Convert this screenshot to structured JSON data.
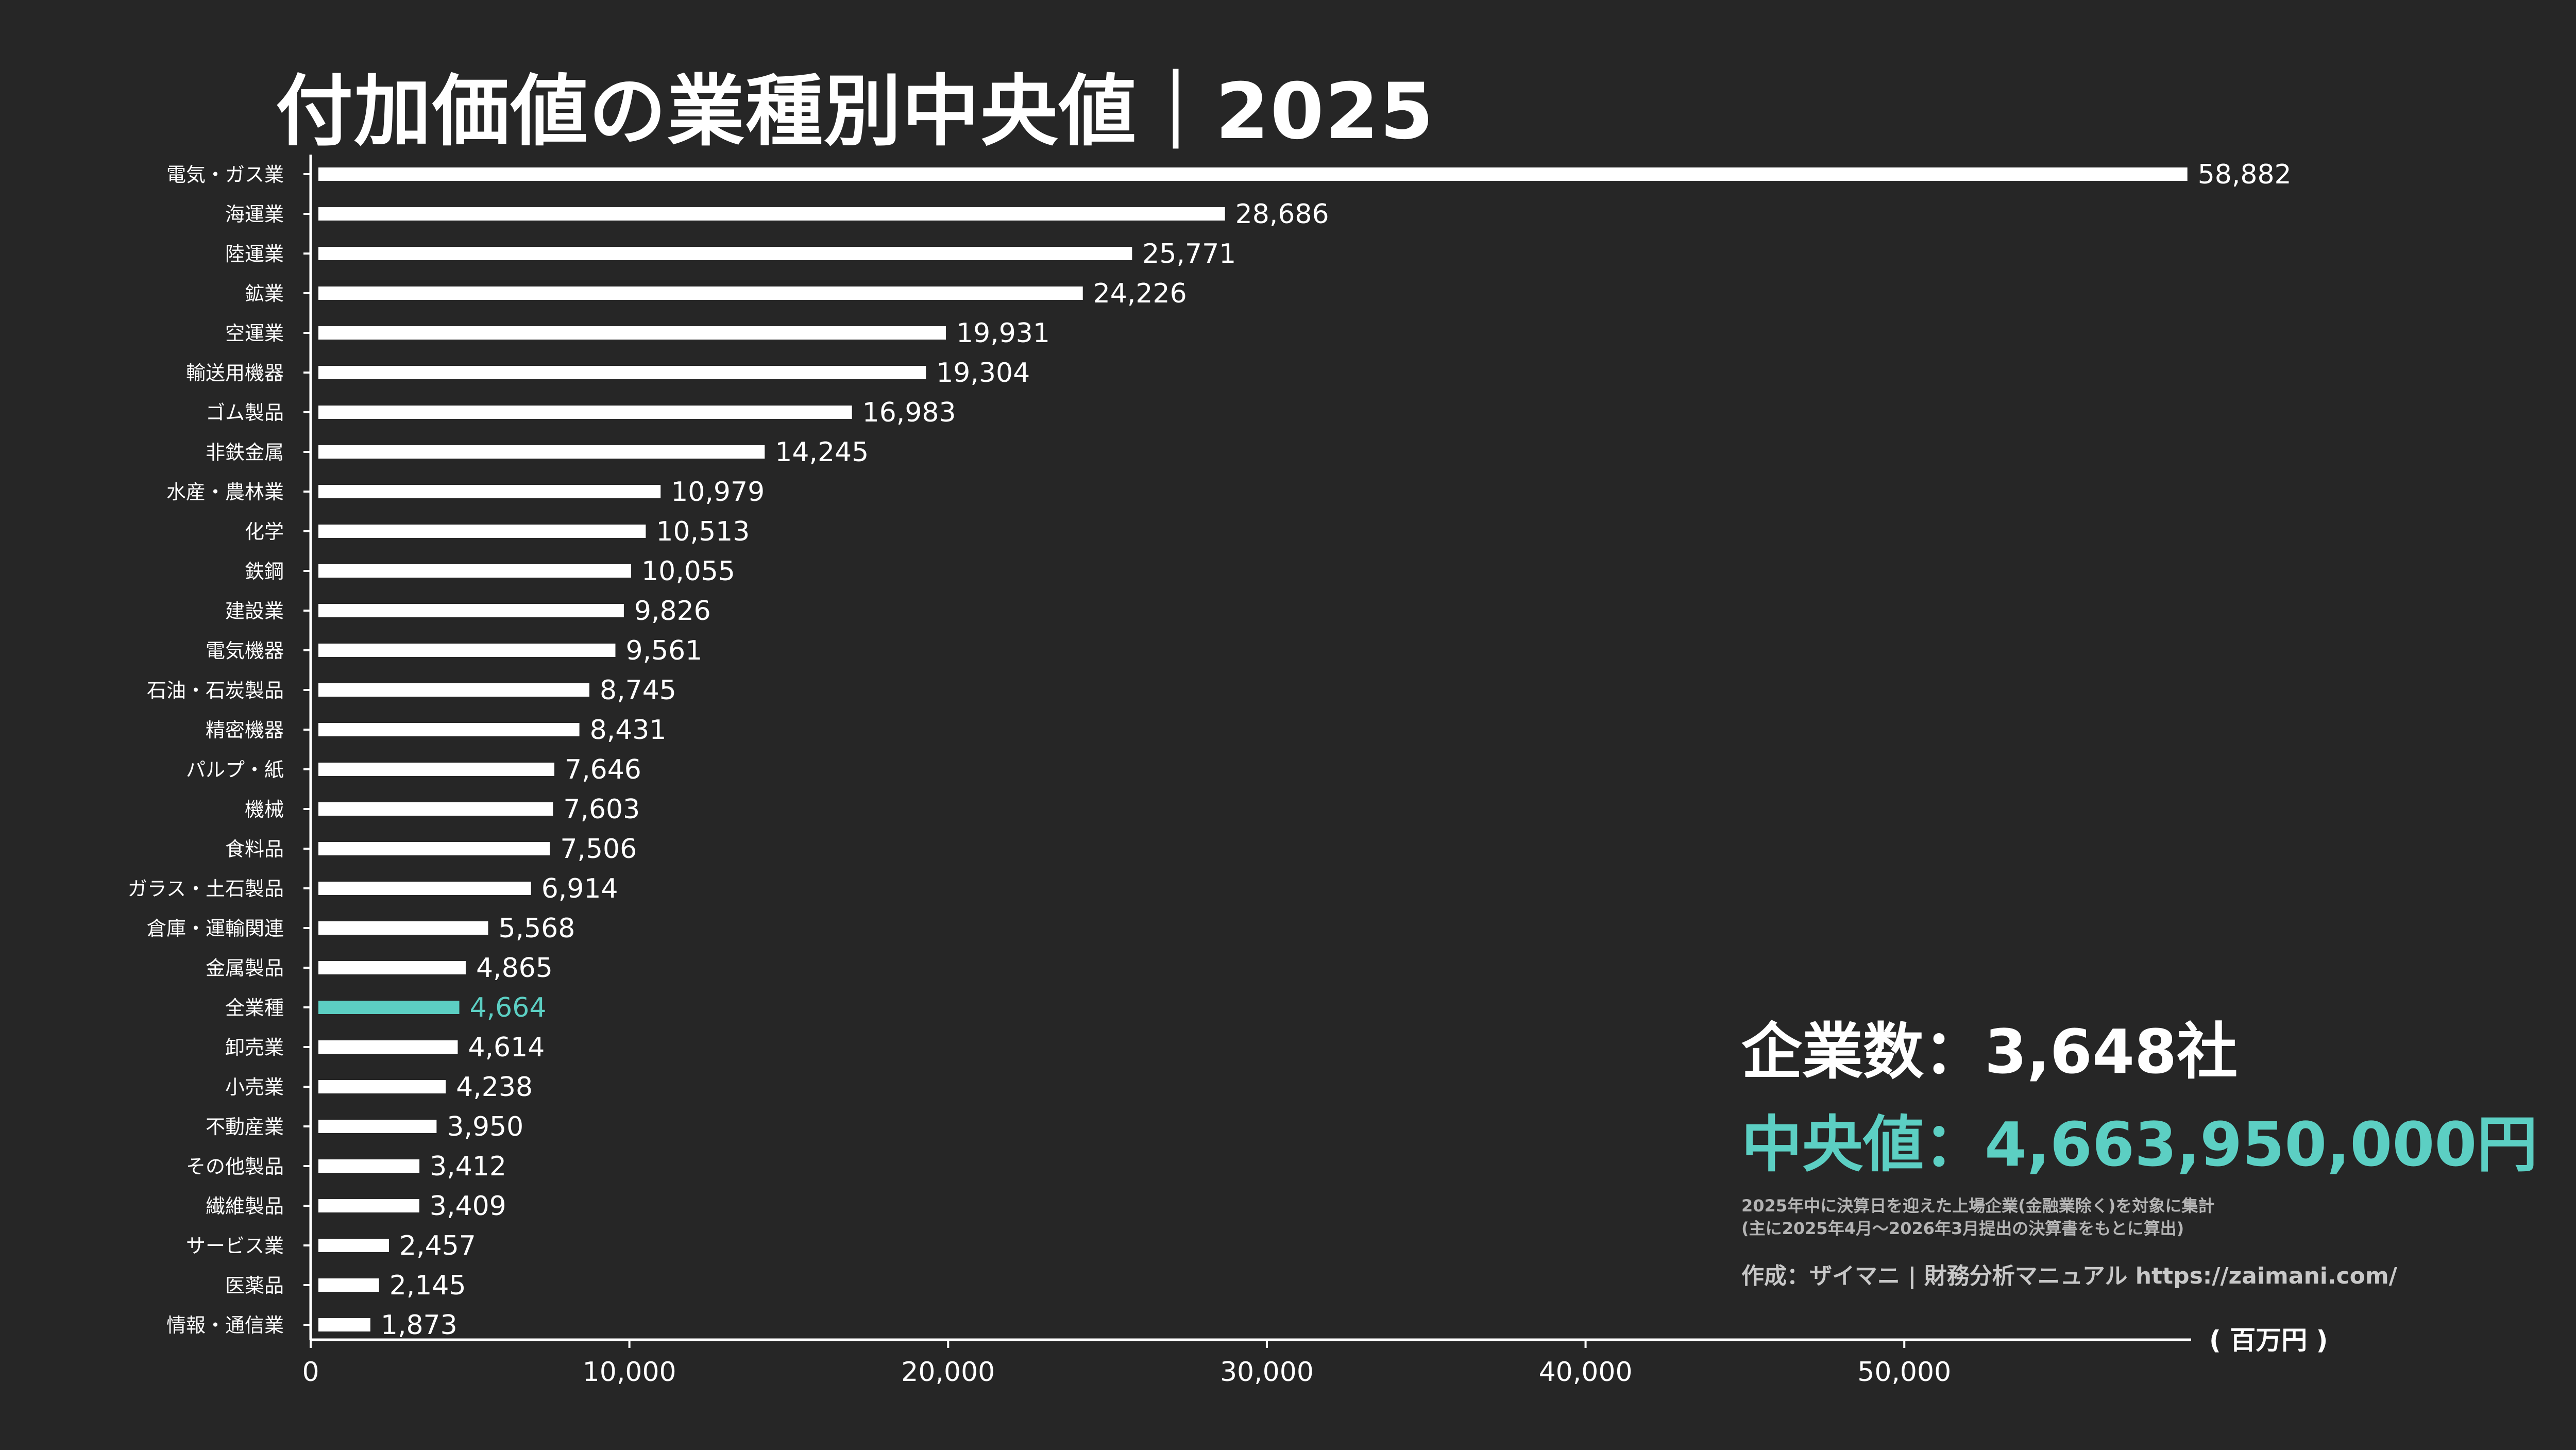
{
  "title": "付加価値の業種別中央値｜2025",
  "summary": {
    "company_count": "企業数：3,648社",
    "median": "中央値：4,663,950,000円",
    "note1": "2025年中に決算日を迎えた上場企業(金融業除く)を対象に集計",
    "note2": "(主に2025年4月〜2026年3月提出の決算書をもとに算出)",
    "credit": "作成：ザイマニ | 財務分析マニュアル https://zaimani.com/"
  },
  "colors": {
    "background": "#262626",
    "bar": "#ffffff",
    "highlight": "#5ccfc3",
    "text": "#ffffff"
  },
  "chart_data": {
    "type": "bar",
    "orientation": "horizontal",
    "title": "付加価値の業種別中央値｜2025",
    "unit_label": "( 百万円 )",
    "xlim": [
      0,
      59000
    ],
    "xticks": [
      0,
      10000,
      20000,
      30000,
      40000,
      50000
    ],
    "xtick_labels": [
      "0",
      "10,000",
      "20,000",
      "30,000",
      "40,000",
      "50,000"
    ],
    "highlight_category": "全業種",
    "categories": [
      "電気・ガス業",
      "海運業",
      "陸運業",
      "鉱業",
      "空運業",
      "輸送用機器",
      "ゴム製品",
      "非鉄金属",
      "水産・農林業",
      "化学",
      "鉄鋼",
      "建設業",
      "電気機器",
      "石油・石炭製品",
      "精密機器",
      "パルプ・紙",
      "機械",
      "食料品",
      "ガラス・土石製品",
      "倉庫・運輸関連",
      "金属製品",
      "全業種",
      "卸売業",
      "小売業",
      "不動産業",
      "その他製品",
      "繊維製品",
      "サービス業",
      "医薬品",
      "情報・通信業"
    ],
    "values": [
      58882,
      28686,
      25771,
      24226,
      19931,
      19304,
      16983,
      14245,
      10979,
      10513,
      10055,
      9826,
      9561,
      8745,
      8431,
      7646,
      7603,
      7506,
      6914,
      5568,
      4865,
      4664,
      4614,
      4238,
      3950,
      3412,
      3409,
      2457,
      2145,
      1873
    ],
    "value_labels": [
      "58,882",
      "28,686",
      "25,771",
      "24,226",
      "19,931",
      "19,304",
      "16,983",
      "14,245",
      "10,979",
      "10,513",
      "10,055",
      "9,826",
      "9,561",
      "8,745",
      "8,431",
      "7,646",
      "7,603",
      "7,506",
      "6,914",
      "5,568",
      "4,865",
      "4,664",
      "4,614",
      "4,238",
      "3,950",
      "3,412",
      "3,409",
      "2,457",
      "2,145",
      "1,873"
    ]
  }
}
